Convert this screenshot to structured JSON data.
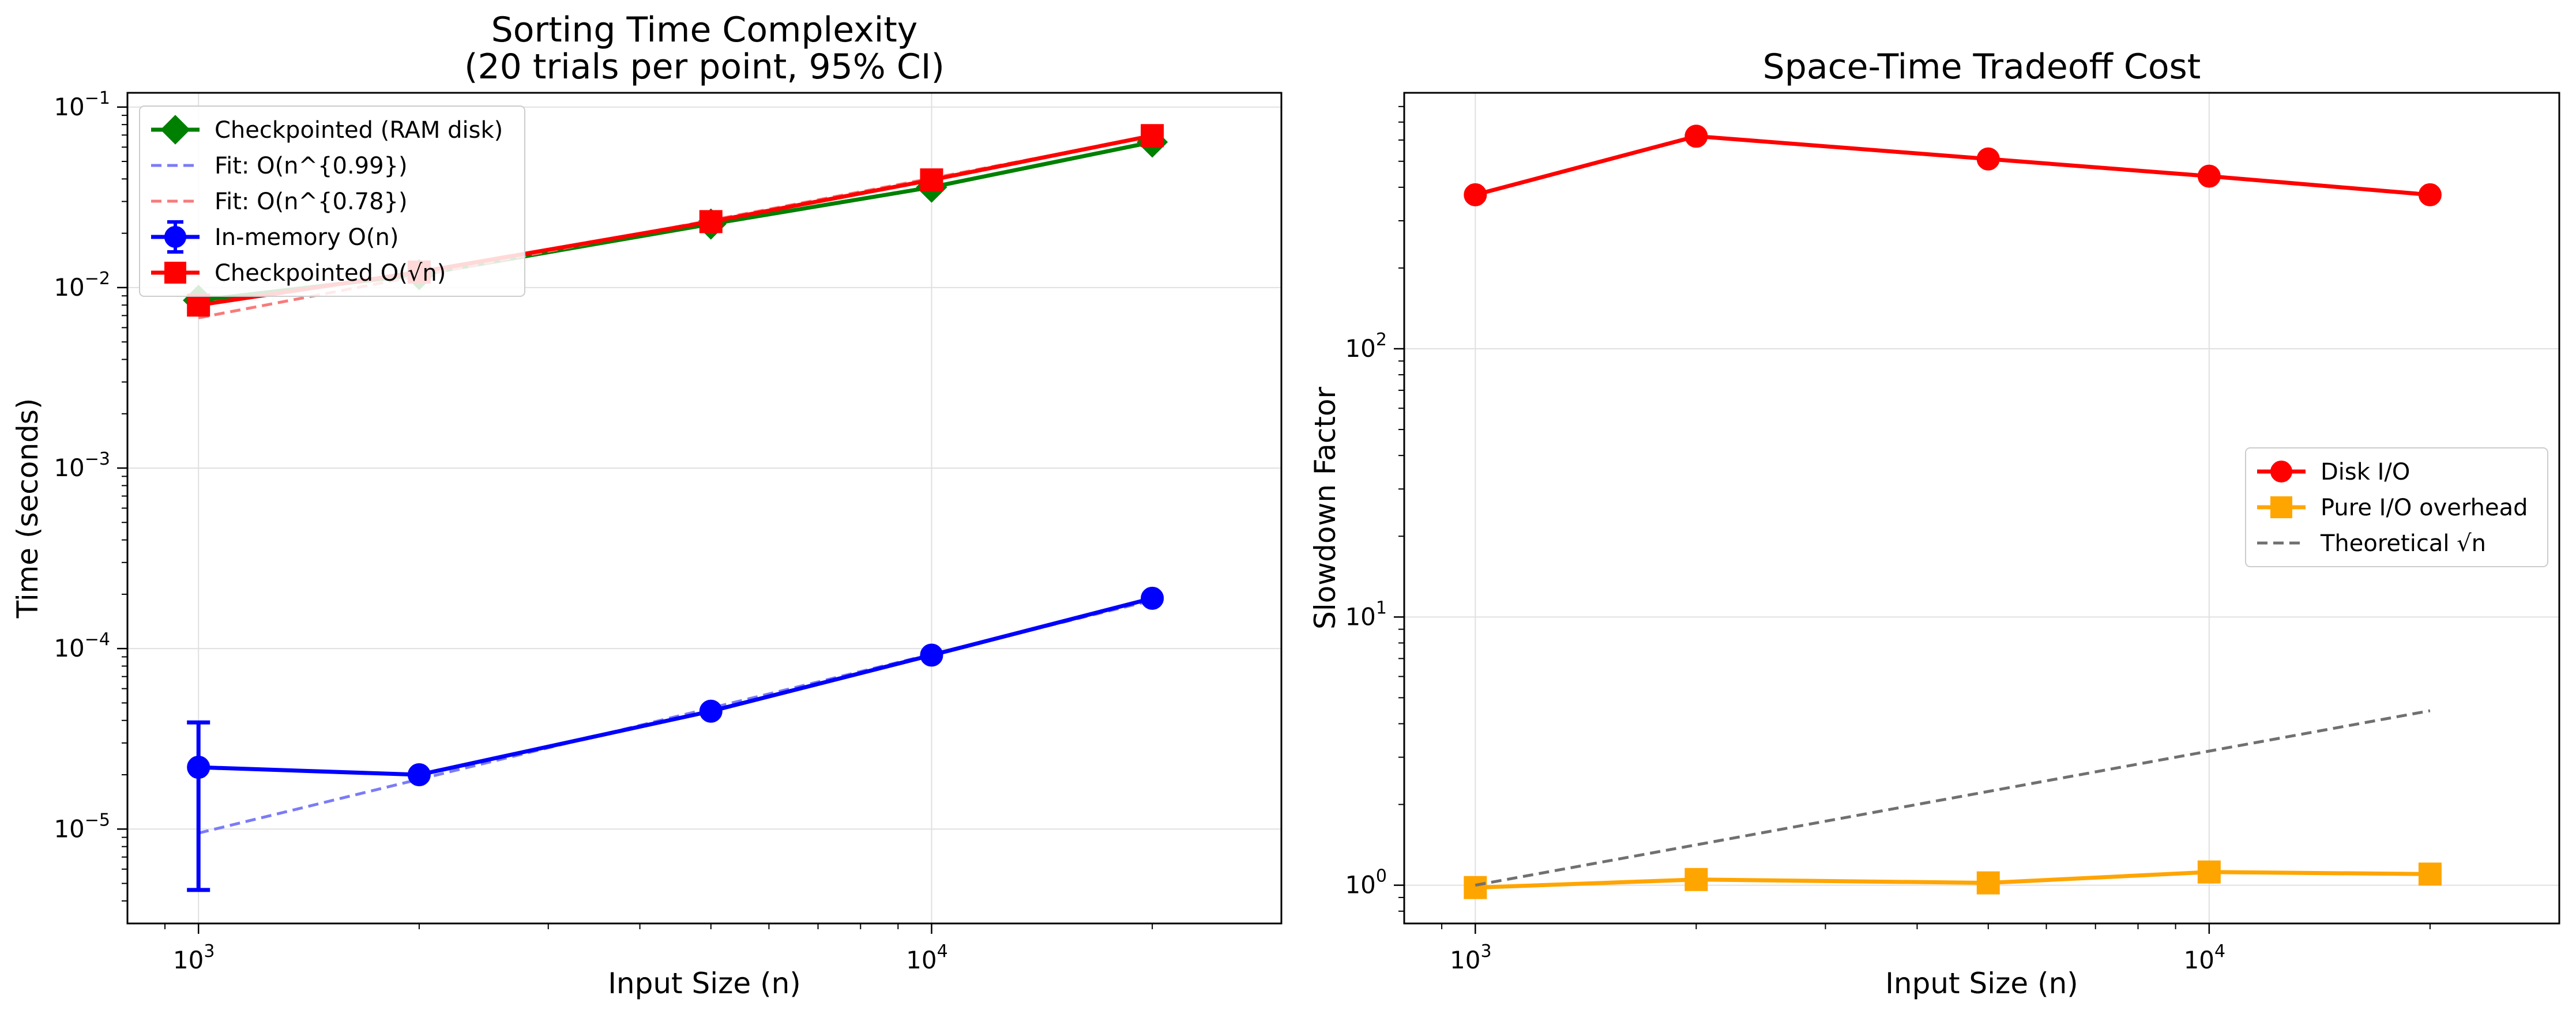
{
  "chart_data": [
    {
      "type": "line",
      "title": "Sorting Time Complexity\n(20 trials per point, 95% CI)",
      "xlabel": "Input Size (n)",
      "ylabel": "Time (seconds)",
      "xscale": "log",
      "yscale": "log",
      "xlim": [
        800,
        30000
      ],
      "ylim": [
        3e-06,
        0.12
      ],
      "grid": true,
      "legend_position": "upper-left",
      "x_ticks": [
        {
          "value": 1000,
          "base": "10",
          "exp": "3"
        },
        {
          "value": 10000,
          "base": "10",
          "exp": "4"
        }
      ],
      "y_ticks": [
        {
          "value": 1e-05,
          "base": "10",
          "exp": "−5"
        },
        {
          "value": 0.0001,
          "base": "10",
          "exp": "−4"
        },
        {
          "value": 0.001,
          "base": "10",
          "exp": "−3"
        },
        {
          "value": 0.01,
          "base": "10",
          "exp": "−2"
        },
        {
          "value": 0.1,
          "base": "10",
          "exp": "−1"
        }
      ],
      "x": [
        1000,
        2000,
        5000,
        10000,
        20000
      ],
      "series": [
        {
          "name": "Checkpointed (RAM disk)",
          "color": "#008000",
          "marker": "diamond",
          "style": "solid",
          "values": [
            0.0085,
            0.0118,
            0.0225,
            0.036,
            0.064
          ]
        },
        {
          "name": "Fit: O(n^{0.99})",
          "color": "#7b7bf7",
          "marker": "none",
          "style": "dashed",
          "x": [
            1000,
            20000
          ],
          "values": [
            9.5e-06,
            0.000185
          ]
        },
        {
          "name": "Fit: O(n^{0.78})",
          "color": "#f77b7b",
          "marker": "none",
          "style": "dashed",
          "x": [
            1000,
            20000
          ],
          "values": [
            0.0068,
            0.069
          ]
        },
        {
          "name": "In-memory O(n)",
          "color": "#0000ff",
          "marker": "circle",
          "style": "solid",
          "values": [
            2.2e-05,
            2e-05,
            4.5e-05,
            9.2e-05,
            0.00019
          ],
          "error_low": [
            4.6e-06,
            null,
            null,
            null,
            null
          ],
          "error_high": [
            3.9e-05,
            null,
            null,
            null,
            null
          ]
        },
        {
          "name": "Checkpointed O(√n)",
          "color": "#ff0000",
          "marker": "square",
          "style": "solid",
          "values": [
            0.008,
            0.0122,
            0.0232,
            0.0395,
            0.0695
          ]
        }
      ]
    },
    {
      "type": "line",
      "title": "Space-Time Tradeoff Cost",
      "xlabel": "Input Size (n)",
      "ylabel": "Slowdown Factor",
      "xscale": "log",
      "yscale": "log",
      "xlim": [
        800,
        30000
      ],
      "ylim": [
        0.72,
        900
      ],
      "grid": true,
      "legend_position": "center-right",
      "x_ticks": [
        {
          "value": 1000,
          "base": "10",
          "exp": "3"
        },
        {
          "value": 10000,
          "base": "10",
          "exp": "4"
        }
      ],
      "y_ticks": [
        {
          "value": 1,
          "base": "10",
          "exp": "0"
        },
        {
          "value": 10,
          "base": "10",
          "exp": "1"
        },
        {
          "value": 100,
          "base": "10",
          "exp": "2"
        }
      ],
      "x": [
        1000,
        2000,
        5000,
        10000,
        20000
      ],
      "series": [
        {
          "name": "Disk I/O",
          "color": "#ff0000",
          "marker": "circle",
          "style": "solid",
          "values": [
            375,
            620,
            510,
            440,
            375
          ]
        },
        {
          "name": "Pure I/O overhead",
          "color": "#ffa500",
          "marker": "square",
          "style": "solid",
          "values": [
            0.98,
            1.05,
            1.02,
            1.12,
            1.1
          ]
        },
        {
          "name": "Theoretical √n",
          "color": "#707070",
          "marker": "none",
          "style": "dashed",
          "values": [
            1.0,
            1.414,
            2.236,
            3.162,
            4.472
          ]
        }
      ]
    }
  ]
}
